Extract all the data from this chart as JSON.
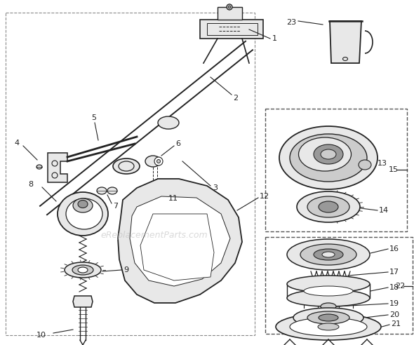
{
  "background_color": "#ffffff",
  "line_color": "#222222",
  "label_color": "#222222",
  "dashed_box_color": "#555555",
  "watermark": "eReplacementParts.com",
  "watermark_color": "#bbbbbb",
  "figsize": [
    5.9,
    4.92
  ],
  "dpi": 100,
  "shaft_color": "#333333",
  "part_fill": "#e8e8e8",
  "dark_fill": "#999999",
  "mid_fill": "#cccccc"
}
